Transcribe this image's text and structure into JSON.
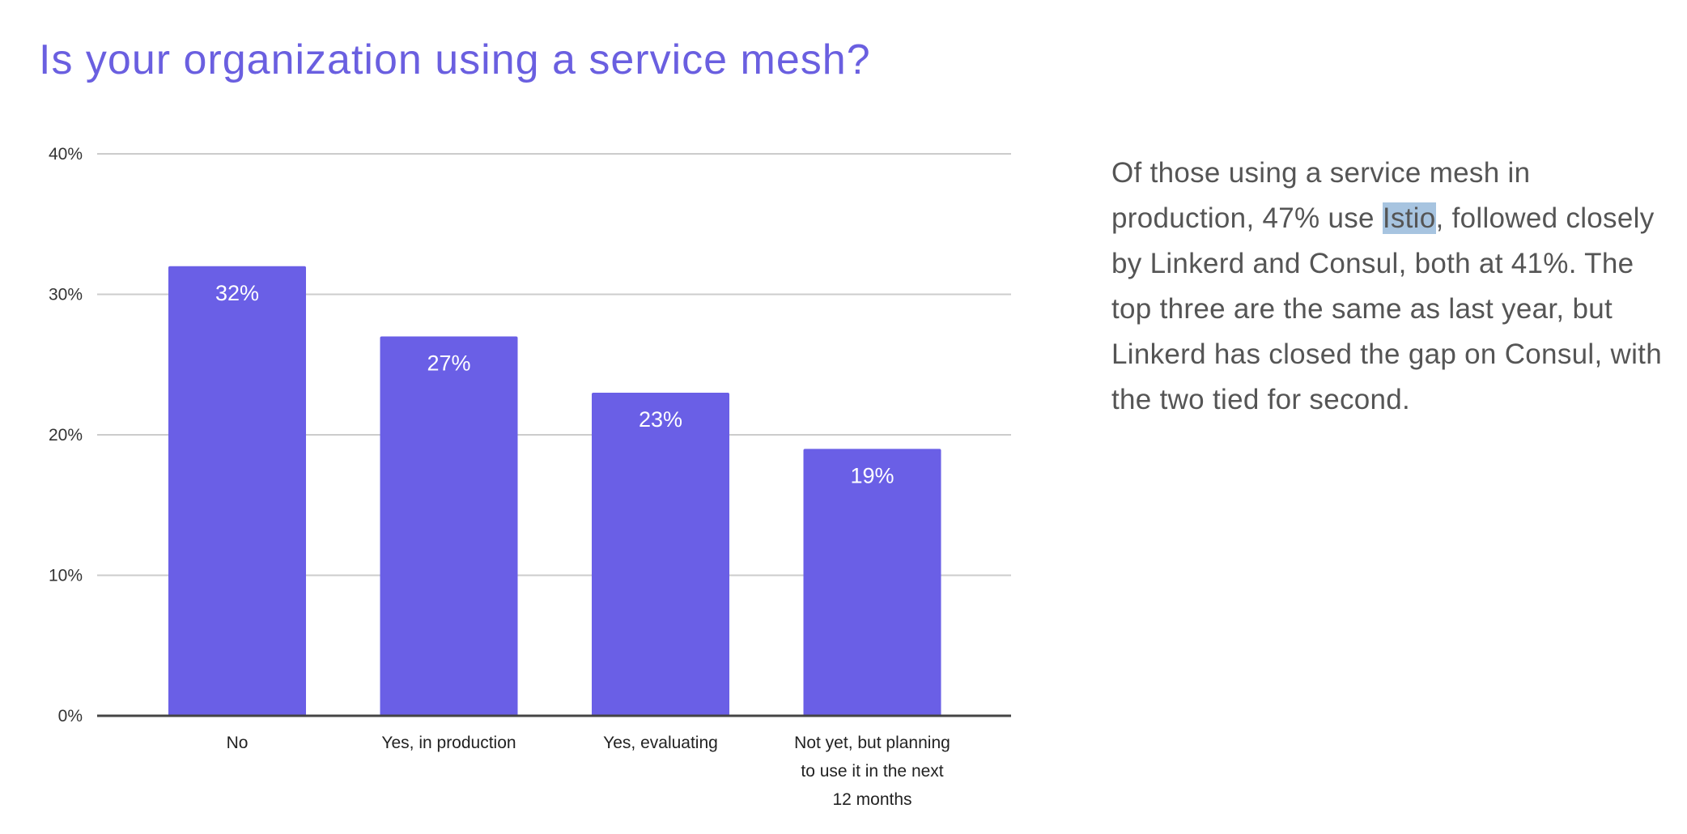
{
  "chart_data": {
    "type": "bar",
    "title": "Is your organization using a service mesh?",
    "categories": [
      "No",
      "Yes, in production",
      "Yes, evaluating",
      "Not yet, but planning to use it in the next 12 months"
    ],
    "category_lines": [
      [
        "No"
      ],
      [
        "Yes, in production"
      ],
      [
        "Yes, evaluating"
      ],
      [
        "Not yet, but planning",
        "to use it in the next",
        "12 months"
      ]
    ],
    "values": [
      32,
      27,
      23,
      19
    ],
    "data_labels": [
      "32%",
      "27%",
      "23%",
      "19%"
    ],
    "ylim": [
      0,
      40
    ],
    "yticks": [
      0,
      10,
      20,
      30,
      40
    ],
    "ytick_labels": [
      "0%",
      "10%",
      "20%",
      "30%",
      "40%"
    ],
    "xlabel": "",
    "ylabel": "",
    "grid": true,
    "bar_color": "#6a5fe6"
  },
  "commentary": {
    "before": "Of those using a service mesh in production, 47% use ",
    "highlight": "Istio",
    "after": ", followed closely by Linkerd and Consul, both at 41%. The top three are the same as last year, but Linkerd has closed the gap on Consul, with the two tied for second."
  }
}
